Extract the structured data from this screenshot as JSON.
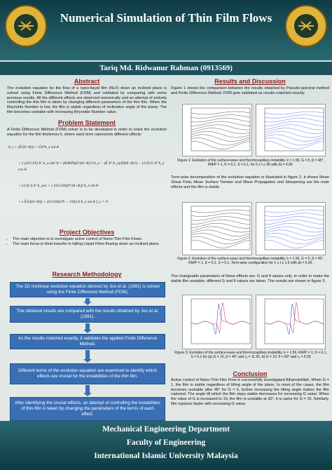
{
  "header": {
    "title": "Numerical Simulation of Thin Film Flows",
    "author": "Tariq Md. Ridwanur Rahman (0913569)"
  },
  "abstract": {
    "heading": "Abstract",
    "text": "The evolution equation for the flow of a nano-liquid film (NLF) down an inclined plane is solved using Finite Difference Method (FDM) and validated by comparing with some previous results. All the different effects are observed numerically and an attempt of actively controlling the thin film is taken by changing different parameters of the thin film. When the Reynolds Number is low, the film is stable regardless of inclination angle of the plane. The film becomes unstable with increasing Reynolds Number value."
  },
  "problem": {
    "heading": "Problem Statement",
    "text": "A Finite Difference Method (FDM) solver is to be developed in order to solve the evolution equation for the film thickness h, where each term represents different effects:",
    "equation": [
      "h_t + (Ē/(h+K)) + Gh³h_x sin θ",
      "+ [ (2G²/15) h⁶ h_x sin² θ + (KM/P)(h²/(h+K)²) h_x − (Ē h³ h_x)/(D(h+K)³) − (1/3) G h³ h_x cos θ",
      "+ (1/3) S h³ h_xxx + ε (5G/24)(h⁴/(h+K)) h_x sin θ",
      "+ ε Ē/(3(h+K)) + (G/120)(7h − 15K) h h_x sin θ ]_x = 0"
    ]
  },
  "objectives": {
    "heading": "Project Objectives",
    "items": [
      "The main objective is to investigate active control of Nano-Thin Film Flows.",
      "The main focus is Heat transfer in falling Liquid Films flowing down an inclined plane."
    ]
  },
  "methodology": {
    "heading": "Research Methodology",
    "steps": [
      "The 2D nonlinear evolution equation derived by Joo et al. (1991) is solved using the Finite Difference Method (FDM).",
      "The obtained results are compared with the results obtained by Joo et al. (1991).",
      "As the results matched exactly, it validates the applied Finite Difference Method.",
      "Different terms of the evolution equation are examined to identify which effects are crucial for the instabilities of the thin film.",
      "After identifying the crucial effects, an attempt of controlling the instabilities of thin-film is taken by changing the parameters of the terms of each effect."
    ]
  },
  "results": {
    "heading": "Results and Discussion",
    "paragraphs": [
      "Figure 1 shows the comparison between the results obtained by Pseudo-spectral method and Finite Difference Method. FDM gets validated as results matched exactly.",
      "Term-wise decomposition of the evolution equation is illustrated in figure 2, it shows Mean Shear Flow, Mean Surface Tension and Wave Propagation and Steepening are the main effects and the film is stable.",
      "The changeable parameters of these effects are: G and θ values only. In order to make the stable film unstable, different G and θ values are taken. The results are shown in figure 3."
    ],
    "captions": [
      "Figure 1: Evolution of the surface-wave and thermocapillary instability. k = 1.56, G = 5, β = 45°, KM/P = 1, K = 0.1, S = 0.1, for 0 ≤ t ≤ 95 with Δt = 0.05.",
      "Figure 2: Evolution of the surface-wave and thermocapillary instability. k = 1.56, G = 5, β = 45°, KM/P = 1, K = 0.1, S = 0.1, Term-wise configuration for 1 ≤ t ≤ 1.5 with Δt = 0.05.",
      "Figure 3: Evolution of the surface-wave and thermocapillary instability. k = 1.56, KM/P = 1, K = 0.1, S = 0.1 for (a) G = 10, β = 45° and rₐ = 11.91; b) G = 10, θ = 60° and rₐ = 6.05"
    ]
  },
  "conclusion": {
    "heading": "Conclusion",
    "text": "Active control of Nano-Thin Film Flow is successfully investigated Alhamdulillah. When G = 1, the film is stable regardless of tilting angle of the plane. In most of the cases, the film becomes unstable after 45° for G = 5, further increasing the tilting angle makes the film ruptured. The angle till which the film stays stable decreases for increasing G value. When the value of G is increased to 10, the film is unstable at 30°, it is same for G = 15. Similarly, film ruptures faster with increasing G value."
  },
  "footer": [
    "Mechanical Engineering Department",
    "Faculty of Engineering",
    "International Islamic University Malaysia"
  ]
}
